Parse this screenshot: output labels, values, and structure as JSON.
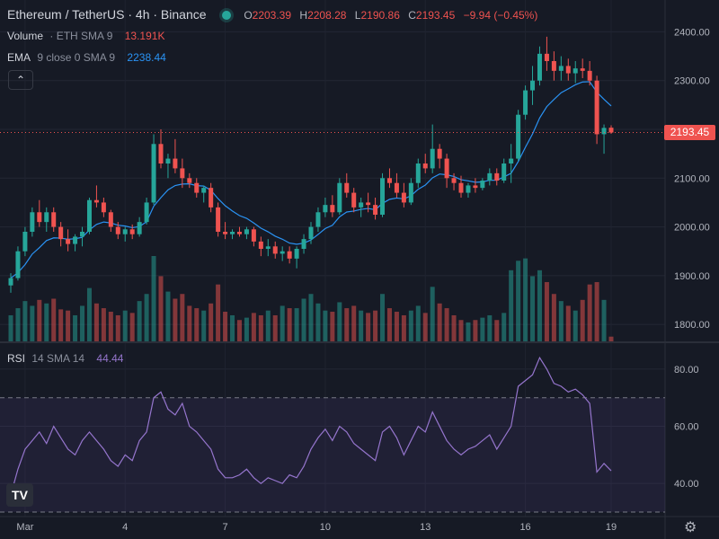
{
  "header": {
    "symbol_title": "Ethereum / TetherUS · 4h · Binance",
    "ohlc": [
      {
        "key": "O",
        "value": "2203.39"
      },
      {
        "key": "H",
        "value": "2208.28"
      },
      {
        "key": "L",
        "value": "2190.86"
      },
      {
        "key": "C",
        "value": "2193.45"
      }
    ],
    "change": "−9.94 (−0.45%)"
  },
  "legends": {
    "volume": {
      "label": "Volume",
      "params": "· ETH  SMA 9",
      "value": "13.191K"
    },
    "ema": {
      "label": "EMA",
      "params": "9 close 0 SMA 9",
      "value": "2238.44"
    },
    "rsi": {
      "label": "RSI",
      "params": "14 SMA 14",
      "value": "44.44"
    },
    "collapse_icon": "chevron-up-icon"
  },
  "price_axis": {
    "ticks": [
      "2400.00",
      "2300.00",
      "2200.00",
      "2100.00",
      "2000.00",
      "1900.00",
      "1800.00"
    ],
    "last_price": "2193.45"
  },
  "rsi_axis": {
    "ticks": [
      "80.00",
      "60.00",
      "40.00"
    ]
  },
  "time_axis": {
    "ticks": [
      "Mar",
      "4",
      "7",
      "10",
      "13",
      "16",
      "19"
    ]
  },
  "colors": {
    "up": "#26a69a",
    "down": "#ef5350",
    "ema": "#2a93f4",
    "rsi": "#9575cd",
    "background": "#161a25"
  },
  "footer": {
    "logo": "TV",
    "settings_icon": "gear-icon"
  },
  "chart_data": [
    {
      "type": "candlestick",
      "title": "Ethereum / TetherUS · 4h · Binance",
      "ylim": [
        1780,
        2410
      ],
      "x_ticks": [
        "Mar",
        "4",
        "7",
        "10",
        "13",
        "16",
        "19"
      ],
      "candles": [
        [
          1880,
          1905,
          1865,
          1895
        ],
        [
          1895,
          1960,
          1890,
          1950
        ],
        [
          1950,
          2000,
          1940,
          1990
        ],
        [
          1990,
          2040,
          1980,
          2030
        ],
        [
          2030,
          2055,
          2000,
          2010
        ],
        [
          2010,
          2040,
          1990,
          2030
        ],
        [
          2030,
          2040,
          1990,
          2000
        ],
        [
          2000,
          2010,
          1960,
          1975
        ],
        [
          1975,
          1995,
          1950,
          1965
        ],
        [
          1965,
          1985,
          1950,
          1980
        ],
        [
          1980,
          2000,
          1960,
          1990
        ],
        [
          1990,
          2060,
          1985,
          2055
        ],
        [
          2055,
          2085,
          2040,
          2050
        ],
        [
          2050,
          2060,
          2020,
          2030
        ],
        [
          2030,
          2035,
          1990,
          2000
        ],
        [
          2000,
          2010,
          1975,
          1985
        ],
        [
          1985,
          2000,
          1970,
          1995
        ],
        [
          1995,
          2005,
          1975,
          1985
        ],
        [
          1985,
          2020,
          1980,
          2010
        ],
        [
          2010,
          2060,
          2005,
          2050
        ],
        [
          2050,
          2190,
          2045,
          2170
        ],
        [
          2170,
          2200,
          2120,
          2130
        ],
        [
          2130,
          2150,
          2100,
          2140
        ],
        [
          2140,
          2180,
          2110,
          2120
        ],
        [
          2120,
          2140,
          2080,
          2100
        ],
        [
          2100,
          2110,
          2080,
          2090
        ],
        [
          2090,
          2100,
          2060,
          2070
        ],
        [
          2070,
          2085,
          2050,
          2080
        ],
        [
          2080,
          2090,
          2030,
          2040
        ],
        [
          2040,
          2050,
          1980,
          1990
        ],
        [
          1990,
          2010,
          1975,
          1985
        ],
        [
          1985,
          1995,
          1975,
          1990
        ],
        [
          1990,
          2000,
          1980,
          1985
        ],
        [
          1985,
          2000,
          1975,
          1995
        ],
        [
          1995,
          2000,
          1960,
          1970
        ],
        [
          1970,
          1980,
          1940,
          1955
        ],
        [
          1955,
          1975,
          1940,
          1960
        ],
        [
          1960,
          1970,
          1935,
          1945
        ],
        [
          1945,
          1960,
          1930,
          1950
        ],
        [
          1950,
          1960,
          1925,
          1935
        ],
        [
          1935,
          1960,
          1915,
          1955
        ],
        [
          1955,
          1985,
          1945,
          1975
        ],
        [
          1975,
          2010,
          1965,
          2000
        ],
        [
          2000,
          2040,
          1990,
          2030
        ],
        [
          2030,
          2060,
          2020,
          2045
        ],
        [
          2045,
          2065,
          2020,
          2030
        ],
        [
          2030,
          2100,
          2025,
          2090
        ],
        [
          2090,
          2110,
          2060,
          2070
        ],
        [
          2070,
          2080,
          2030,
          2040
        ],
        [
          2040,
          2060,
          2020,
          2050
        ],
        [
          2050,
          2070,
          2030,
          2045
        ],
        [
          2045,
          2060,
          2015,
          2025
        ],
        [
          2025,
          2110,
          2020,
          2100
        ],
        [
          2100,
          2120,
          2080,
          2090
        ],
        [
          2090,
          2110,
          2060,
          2070
        ],
        [
          2070,
          2090,
          2040,
          2050
        ],
        [
          2050,
          2100,
          2045,
          2090
        ],
        [
          2090,
          2140,
          2080,
          2130
        ],
        [
          2130,
          2150,
          2110,
          2120
        ],
        [
          2120,
          2210,
          2110,
          2160
        ],
        [
          2160,
          2170,
          2120,
          2140
        ],
        [
          2140,
          2150,
          2080,
          2100
        ],
        [
          2100,
          2110,
          2075,
          2090
        ],
        [
          2090,
          2105,
          2060,
          2070
        ],
        [
          2070,
          2090,
          2060,
          2085
        ],
        [
          2085,
          2100,
          2070,
          2080
        ],
        [
          2080,
          2100,
          2075,
          2095
        ],
        [
          2095,
          2120,
          2085,
          2110
        ],
        [
          2110,
          2120,
          2085,
          2095
        ],
        [
          2095,
          2140,
          2090,
          2130
        ],
        [
          2130,
          2170,
          2090,
          2140
        ],
        [
          2140,
          2240,
          2135,
          2230
        ],
        [
          2230,
          2290,
          2220,
          2280
        ],
        [
          2280,
          2330,
          2250,
          2300
        ],
        [
          2300,
          2370,
          2290,
          2355
        ],
        [
          2355,
          2390,
          2320,
          2340
        ],
        [
          2340,
          2360,
          2300,
          2320
        ],
        [
          2320,
          2350,
          2300,
          2330
        ],
        [
          2330,
          2345,
          2300,
          2315
        ],
        [
          2315,
          2340,
          2295,
          2325
        ],
        [
          2325,
          2345,
          2305,
          2320
        ],
        [
          2320,
          2340,
          2290,
          2300
        ],
        [
          2300,
          2310,
          2170,
          2190
        ],
        [
          2190,
          2210,
          2150,
          2203
        ],
        [
          2203.39,
          2208.28,
          2190.86,
          2193.45
        ]
      ],
      "volume": [
        22,
        28,
        34,
        30,
        35,
        32,
        36,
        27,
        26,
        22,
        30,
        45,
        32,
        28,
        25,
        22,
        26,
        24,
        34,
        40,
        72,
        55,
        42,
        36,
        40,
        30,
        28,
        26,
        32,
        48,
        25,
        22,
        18,
        20,
        24,
        22,
        26,
        22,
        30,
        28,
        28,
        36,
        40,
        32,
        26,
        25,
        33,
        28,
        30,
        26,
        24,
        26,
        40,
        28,
        25,
        22,
        26,
        30,
        24,
        46,
        32,
        28,
        22,
        18,
        16,
        18,
        20,
        22,
        18,
        24,
        60,
        68,
        70,
        55,
        60,
        50,
        40,
        34,
        30,
        26,
        35,
        48,
        50,
        35,
        4
      ]
    },
    {
      "type": "line",
      "title": "RSI 14 SMA 14",
      "ylim": [
        30,
        85
      ],
      "x_ticks": [
        "Mar",
        "4",
        "7",
        "10",
        "13",
        "16",
        "19"
      ],
      "values": [
        36,
        45,
        52,
        55,
        58,
        54,
        60,
        56,
        52,
        50,
        55,
        58,
        55,
        52,
        48,
        46,
        50,
        48,
        55,
        58,
        70,
        72,
        66,
        64,
        68,
        60,
        58,
        55,
        52,
        45,
        42,
        42,
        43,
        45,
        42,
        40,
        42,
        41,
        40,
        43,
        42,
        46,
        52,
        56,
        59,
        55,
        60,
        58,
        54,
        52,
        50,
        48,
        58,
        60,
        56,
        50,
        55,
        60,
        58,
        65,
        60,
        55,
        52,
        50,
        52,
        53,
        55,
        57,
        52,
        56,
        60,
        74,
        76,
        78,
        84,
        80,
        75,
        74,
        72,
        73,
        71,
        68,
        44,
        47,
        44.44
      ]
    }
  ]
}
